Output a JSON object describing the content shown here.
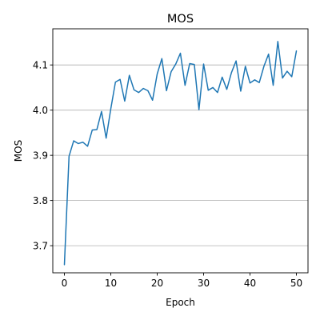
{
  "chart_data": {
    "type": "line",
    "title": "MOS",
    "xlabel": "Epoch",
    "ylabel": "MOS",
    "xlim": [
      -2.5,
      52.5
    ],
    "ylim": [
      3.64,
      4.18
    ],
    "xticks": [
      0,
      10,
      20,
      30,
      40,
      50
    ],
    "yticks": [
      3.7,
      3.8,
      3.9,
      4.0,
      4.1
    ],
    "ytick_labels": [
      "3.7",
      "3.8",
      "3.9",
      "4.0",
      "4.1"
    ],
    "grid": "y-only",
    "line_color": "#1f77b4",
    "series": [
      {
        "x": [
          0,
          1,
          2,
          3,
          4,
          5,
          6,
          7,
          8,
          9,
          10,
          11,
          12,
          13,
          14,
          15,
          16,
          17,
          18,
          19,
          20,
          21,
          22,
          23,
          24,
          25,
          26,
          27,
          28,
          29,
          30,
          31,
          32,
          33,
          34,
          35,
          36,
          37,
          38,
          39,
          40,
          41,
          42,
          43,
          44,
          45,
          46,
          47,
          48,
          49,
          50
        ],
        "values": [
          3.658,
          3.898,
          3.932,
          3.926,
          3.929,
          3.92,
          3.956,
          3.957,
          3.997,
          3.938,
          4.003,
          4.062,
          4.068,
          4.02,
          4.077,
          4.045,
          4.039,
          4.048,
          4.043,
          4.022,
          4.08,
          4.114,
          4.043,
          4.085,
          4.102,
          4.126,
          4.055,
          4.103,
          4.101,
          4.001,
          4.102,
          4.044,
          4.05,
          4.039,
          4.073,
          4.046,
          4.083,
          4.109,
          4.042,
          4.097,
          4.06,
          4.067,
          4.061,
          4.097,
          4.124,
          4.055,
          4.152,
          4.071,
          4.086,
          4.074,
          4.131
        ]
      }
    ]
  }
}
